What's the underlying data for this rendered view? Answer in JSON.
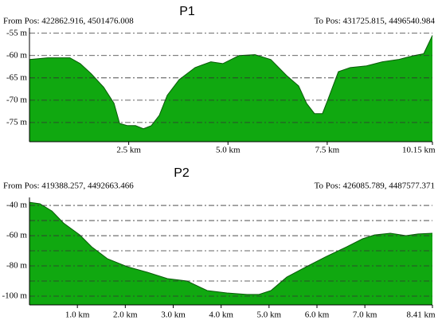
{
  "chart_data": [
    {
      "type": "area",
      "title": "P1",
      "from_label": "From Pos: 422862.916, 4501476.008",
      "to_label": "To Pos: 431725.815, 4496540.984",
      "color": "#10a810",
      "line_color": "#0a5a0a",
      "grid": true,
      "xlim": [
        0,
        10.15
      ],
      "ylim": [
        -79.3,
        -53.8
      ],
      "xticks": [
        {
          "value": 2.5,
          "label": "2.5 km"
        },
        {
          "value": 5.0,
          "label": "5.0 km"
        },
        {
          "value": 7.5,
          "label": "7.5 km"
        },
        {
          "value": 10.15,
          "label": "10.15 km"
        }
      ],
      "yticks": [
        {
          "value": -55,
          "label": "-55 m"
        },
        {
          "value": -60,
          "label": "-60 m"
        },
        {
          "value": -65,
          "label": "-65 m"
        },
        {
          "value": -70,
          "label": "-70 m"
        },
        {
          "value": -75,
          "label": "-75 m"
        }
      ],
      "x": [
        0,
        0.46,
        1.02,
        1.28,
        1.56,
        1.87,
        2.13,
        2.27,
        2.47,
        2.67,
        2.87,
        3.07,
        3.27,
        3.47,
        3.77,
        4.17,
        4.57,
        4.87,
        5.28,
        5.68,
        6.08,
        6.48,
        6.78,
        6.98,
        7.18,
        7.38,
        7.52,
        7.78,
        8.08,
        8.49,
        8.89,
        9.29,
        9.69,
        9.93,
        10.15
      ],
      "values": [
        -60.9,
        -60.5,
        -60.5,
        -61.8,
        -64.1,
        -67.1,
        -70.7,
        -75.2,
        -75.7,
        -75.7,
        -76.4,
        -75.7,
        -73.4,
        -68.9,
        -65.4,
        -62.7,
        -61.4,
        -61.8,
        -60.0,
        -59.8,
        -60.9,
        -64.5,
        -66.8,
        -70.7,
        -73.0,
        -73.0,
        -69.8,
        -63.6,
        -62.7,
        -62.3,
        -61.4,
        -60.9,
        -60.0,
        -59.6,
        -55.5
      ]
    },
    {
      "type": "area",
      "title": "P2",
      "from_label": "From Pos: 419388.257, 4492663.466",
      "to_label": "To Pos: 426085.789, 4487577.371",
      "color": "#10a810",
      "line_color": "#0a5a0a",
      "grid": true,
      "xlim": [
        0,
        8.41
      ],
      "ylim": [
        -105.8,
        -34.7
      ],
      "xticks": [
        {
          "value": 1.0,
          "label": "1.0 km"
        },
        {
          "value": 2.0,
          "label": "2.0 km"
        },
        {
          "value": 3.0,
          "label": "3.0 km"
        },
        {
          "value": 4.0,
          "label": "4.0 km"
        },
        {
          "value": 5.0,
          "label": "5.0 km"
        },
        {
          "value": 6.0,
          "label": "6.0 km"
        },
        {
          "value": 7.0,
          "label": "7.0 km"
        },
        {
          "value": 8.41,
          "label": "8.41 km"
        }
      ],
      "yticks": [
        {
          "value": -40,
          "label": "-40 m"
        },
        {
          "value": -60,
          "label": "-60 m"
        },
        {
          "value": -80,
          "label": "-80 m"
        },
        {
          "value": -100,
          "label": "-100 m"
        }
      ],
      "minor_yticks": [
        -50,
        -70,
        -90
      ],
      "x": [
        0,
        0.22,
        0.47,
        0.71,
        1.05,
        1.3,
        1.63,
        2.04,
        2.46,
        2.88,
        3.29,
        3.71,
        4.12,
        4.54,
        4.79,
        5.04,
        5.37,
        5.78,
        6.2,
        6.62,
        6.95,
        7.2,
        7.53,
        7.86,
        8.11,
        8.41
      ],
      "values": [
        -37.9,
        -38.9,
        -43.7,
        -51.6,
        -59.5,
        -67.4,
        -75.3,
        -80.5,
        -84.2,
        -88.4,
        -90.0,
        -96.3,
        -97.9,
        -98.9,
        -98.9,
        -96.3,
        -87.4,
        -80.5,
        -73.7,
        -67.4,
        -62.1,
        -59.5,
        -58.4,
        -60.0,
        -58.9,
        -58.4
      ]
    }
  ]
}
